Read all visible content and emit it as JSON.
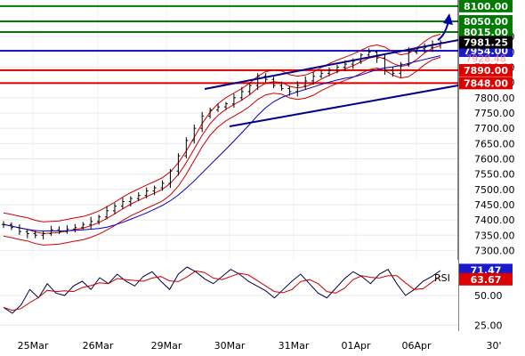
{
  "chart_data": [
    {
      "type": "line",
      "subtype": "candlestick-with-bands",
      "instrument_scale": {
        "ylim": [
          7275,
          8120
        ]
      },
      "price_ticks": [
        7300,
        7350,
        7400,
        7450,
        7500,
        7550,
        7600,
        7650,
        7700,
        7750,
        7800,
        7850,
        7900,
        7950,
        8000
      ],
      "x_tick_labels": [
        "25Mar",
        "26Mar",
        "29Mar",
        "30Mar",
        "31Mar",
        "01Apr",
        "06Apr",
        "30'"
      ],
      "horizontal_levels": [
        {
          "value": 8100,
          "label": "8100.00",
          "color": "#007a00"
        },
        {
          "value": 8050,
          "label": "8050.00",
          "color": "#007a00"
        },
        {
          "value": 8015,
          "label": "8015.00",
          "color": "#007a00"
        },
        {
          "value": 7954,
          "label": "7954.00",
          "color": "#1a1acc"
        },
        {
          "value": 7890,
          "label": "7890.00",
          "color": "#dd0000"
        },
        {
          "value": 7848,
          "label": "7848.00",
          "color": "#dd0000"
        }
      ],
      "last_price": {
        "value": 7981.25,
        "label": "7981.25"
      },
      "partial_label": {
        "value": 7928.48,
        "label": "7928.48"
      },
      "trend_channel": {
        "upper": [
          [
            230,
            100
          ],
          [
            515,
            45
          ]
        ],
        "lower": [
          [
            258,
            142
          ],
          [
            515,
            96
          ]
        ],
        "color": "#00008b"
      },
      "series": [
        {
          "kind": "price",
          "values": [
            7385,
            7375,
            7362,
            7355,
            7350,
            7355,
            7368,
            7362,
            7370,
            7375,
            7385,
            7395,
            7410,
            7430,
            7445,
            7460,
            7470,
            7480,
            7495,
            7505,
            7520,
            7560,
            7610,
            7660,
            7700,
            7740,
            7760,
            7770,
            7780,
            7800,
            7820,
            7840,
            7870,
            7860,
            7840,
            7830,
            7820,
            7840,
            7855,
            7870,
            7880,
            7890,
            7900,
            7910,
            7920,
            7940,
            7950,
            7930,
            7890,
            7880,
            7910,
            7950,
            7960,
            7965,
            7975,
            7981
          ]
        }
      ]
    },
    {
      "type": "line",
      "subtype": "oscillator",
      "title": "RSI",
      "ylim": [
        20,
        80
      ],
      "y_ticks": [
        25,
        50
      ],
      "y_tick_labels": [
        "25.00",
        "50.00"
      ],
      "current_values": [
        {
          "value": 71.47,
          "label": "71.47",
          "color": "#1a1acc"
        },
        {
          "value": 63.67,
          "label": "63.67",
          "color": "#dd0000"
        }
      ],
      "series": [
        {
          "kind": "rsi",
          "values": [
            40,
            35,
            42,
            55,
            48,
            60,
            52,
            50,
            58,
            62,
            55,
            65,
            60,
            68,
            62,
            58,
            66,
            70,
            62,
            55,
            68,
            74,
            70,
            64,
            60,
            66,
            72,
            68,
            62,
            58,
            54,
            48,
            55,
            62,
            68,
            60,
            52,
            48,
            56,
            64,
            70,
            66,
            60,
            68,
            72,
            60,
            50,
            55,
            62,
            66,
            71
          ]
        }
      ]
    }
  ]
}
